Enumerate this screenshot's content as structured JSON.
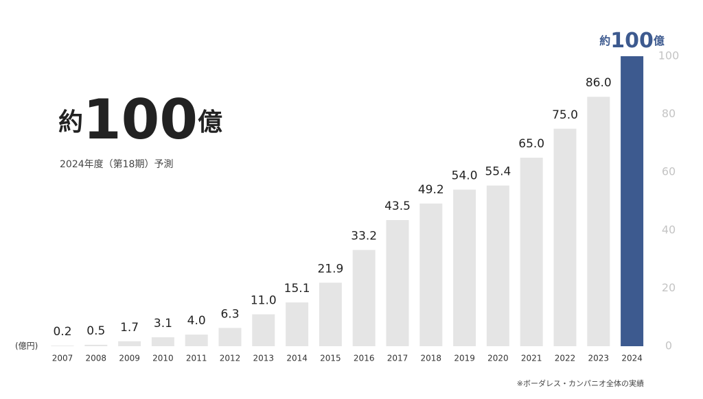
{
  "chart_data": {
    "type": "bar",
    "headline": {
      "prefix": "約",
      "number": "100",
      "suffix": "億"
    },
    "subtitle": "2024年度（第18期）予測",
    "unit_label": "(億円)",
    "note": "※ボーダレス・カンパニオ全体の実績",
    "categories": [
      "2007",
      "2008",
      "2009",
      "2010",
      "2011",
      "2012",
      "2013",
      "2014",
      "2015",
      "2016",
      "2017",
      "2018",
      "2019",
      "2020",
      "2021",
      "2022",
      "2023",
      "2024"
    ],
    "values": [
      0.2,
      0.5,
      1.7,
      3.1,
      4.0,
      6.3,
      11.0,
      15.1,
      21.9,
      33.2,
      43.5,
      49.2,
      54.0,
      55.4,
      65.0,
      75.0,
      86.0,
      100
    ],
    "value_labels": [
      "0.2",
      "0.5",
      "1.7",
      "3.1",
      "4.0",
      "6.3",
      "11.0",
      "15.1",
      "21.9",
      "33.2",
      "43.5",
      "49.2",
      "54.0",
      "55.4",
      "65.0",
      "75.0",
      "86.0",
      "100"
    ],
    "highlight_prefix": "約",
    "highlight_suffix": "億",
    "color": "#e5e5e5",
    "highlight_color": "#3d5a8f",
    "ylim": [
      0,
      100
    ],
    "yticks": [
      0,
      20,
      40,
      60,
      80,
      100
    ],
    "y_axis_side": "right"
  }
}
